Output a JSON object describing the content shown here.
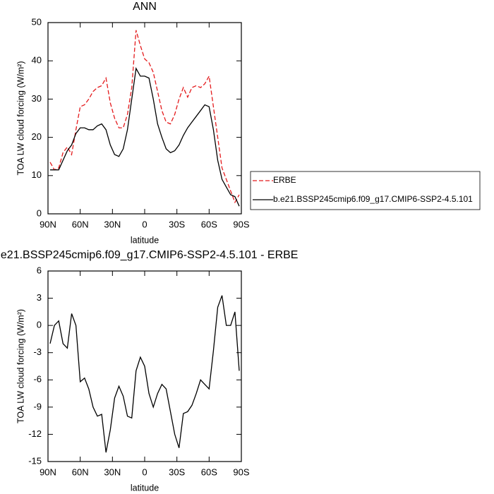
{
  "chart_data": [
    {
      "type": "line",
      "title": "ANN",
      "x_label": "latitude",
      "y_label": "TOA LW cloud forcing (W/m²)",
      "x": [
        88,
        84,
        80,
        76,
        72,
        68,
        64,
        60,
        56,
        52,
        48,
        44,
        40,
        36,
        32,
        28,
        24,
        20,
        16,
        12,
        8,
        4,
        0,
        -4,
        -8,
        -12,
        -16,
        -20,
        -24,
        -28,
        -32,
        -36,
        -40,
        -44,
        -48,
        -52,
        -56,
        -60,
        -64,
        -68,
        -72,
        -76,
        -80,
        -84,
        -88
      ],
      "series": [
        {
          "name": "ERBE",
          "color": "#e41a1c",
          "dash": true,
          "values": [
            13.5,
            11.5,
            12,
            16,
            17.5,
            15.5,
            22,
            28,
            28.5,
            30,
            32,
            33,
            33.5,
            35.5,
            29,
            25,
            22.5,
            22.5,
            26,
            33,
            48,
            44,
            40.5,
            39.5,
            37,
            32,
            27,
            24,
            23.5,
            26,
            30,
            33,
            30.5,
            33,
            33.5,
            33,
            34,
            36,
            28,
            20,
            12,
            9,
            6,
            3,
            5
          ]
        },
        {
          "name": "b.e21.BSSP245cmip6.f09_g17.CMIP6-SSP2-4.5.101",
          "color": "#000000",
          "dash": false,
          "values": [
            11.5,
            11.5,
            11.5,
            14,
            16.5,
            18,
            21,
            22.5,
            22.5,
            22,
            22,
            23,
            23.5,
            22,
            18,
            15.5,
            15,
            17,
            22,
            30,
            38,
            36,
            36,
            35.5,
            30,
            23.5,
            20,
            17,
            16,
            16.5,
            18,
            20.5,
            22.5,
            24,
            25.5,
            27,
            28.5,
            28,
            22,
            14,
            9,
            7,
            5,
            4.5,
            2
          ]
        }
      ],
      "xlim": [
        90,
        -90
      ],
      "xticks": [
        {
          "value": 90,
          "label": "90N"
        },
        {
          "value": 60,
          "label": "60N"
        },
        {
          "value": 30,
          "label": "30N"
        },
        0,
        {
          "value": -30,
          "label": "30S"
        },
        {
          "value": -60,
          "label": "60S"
        },
        {
          "value": -90,
          "label": "90S"
        }
      ],
      "ylim": [
        0,
        50
      ],
      "yticks": [
        0,
        10,
        20,
        30,
        40,
        50
      ],
      "legend": "right"
    },
    {
      "type": "line",
      "title": "b.e21.BSSP245cmip6.f09_g17.CMIP6-SSP2-4.5.101 - ERBE",
      "x_label": "latitude",
      "y_label": "TOA LW cloud forcing (W/m²)",
      "x": [
        88,
        84,
        80,
        76,
        72,
        68,
        64,
        60,
        56,
        52,
        48,
        44,
        40,
        36,
        32,
        28,
        24,
        20,
        16,
        12,
        8,
        4,
        0,
        -4,
        -8,
        -12,
        -16,
        -20,
        -24,
        -28,
        -32,
        -36,
        -40,
        -44,
        -48,
        -52,
        -56,
        -60,
        -64,
        -68,
        -72,
        -76,
        -80,
        -84,
        -88
      ],
      "series": [
        {
          "color": "#000000",
          "dash": false,
          "values": [
            -2,
            0,
            0.5,
            -2,
            -2.5,
            1.3,
            0,
            -6.2,
            -5.8,
            -7,
            -9,
            -10,
            -9.8,
            -14,
            -11.5,
            -8,
            -6.7,
            -7.8,
            -10,
            -10.2,
            -5,
            -3.5,
            -4.5,
            -7.5,
            -9,
            -7.5,
            -6.5,
            -7,
            -9.5,
            -12,
            -13.5,
            -9.7,
            -9.5,
            -8.8,
            -7.5,
            -6,
            -6.5,
            -7,
            -2.8,
            2,
            3.3,
            0,
            0,
            1.5,
            -5
          ]
        }
      ],
      "xlim": [
        90,
        -90
      ],
      "xticks": [
        {
          "value": 90,
          "label": "90N"
        },
        {
          "value": 60,
          "label": "60N"
        },
        {
          "value": 30,
          "label": "30N"
        },
        0,
        {
          "value": -30,
          "label": "30S"
        },
        {
          "value": -60,
          "label": "60S"
        },
        {
          "value": -90,
          "label": "90S"
        }
      ],
      "ylim": [
        -15,
        6
      ],
      "yticks": [
        -15,
        -12,
        -9,
        -6,
        -3,
        0,
        3,
        6
      ]
    }
  ]
}
